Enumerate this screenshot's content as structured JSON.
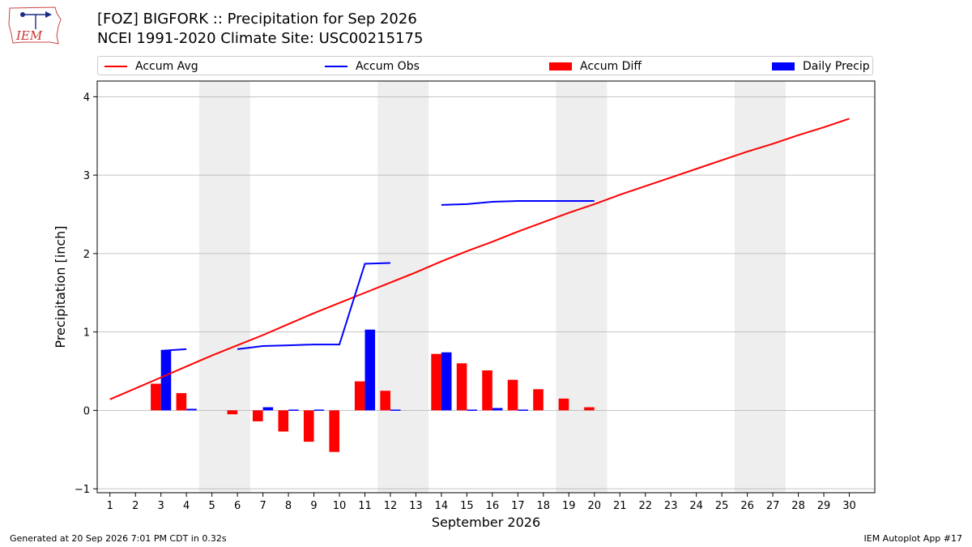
{
  "header": {
    "logo_text": "IEM",
    "title_line1": "[FOZ] BIGFORK :: Precipitation for Sep 2026",
    "title_line2": "NCEI 1991-2020 Climate Site: USC00215175"
  },
  "legend": {
    "placement": "top",
    "items": [
      {
        "label": "Accum Avg",
        "kind": "line",
        "color": "#ff0000"
      },
      {
        "label": "Accum Obs",
        "kind": "line",
        "color": "#0000ff"
      },
      {
        "label": "Accum Diff",
        "kind": "patch",
        "color": "#ff0000"
      },
      {
        "label": "Daily Precip",
        "kind": "patch",
        "color": "#0000ff"
      }
    ]
  },
  "footer": {
    "left": "Generated at 20 Sep 2026 7:01 PM CDT in 0.32s",
    "right": "IEM Autoplot App #17"
  },
  "chart_data": {
    "type": "bar",
    "title": "[FOZ] BIGFORK :: Precipitation for Sep 2026",
    "subtitle": "NCEI 1991-2020 Climate Site: USC00215175",
    "xlabel": "September 2026",
    "ylabel": "Precipitation [inch]",
    "xlim": [
      0.5,
      31
    ],
    "ylim": [
      -1.05,
      4.2
    ],
    "x_ticks": [
      1,
      2,
      3,
      4,
      5,
      6,
      7,
      8,
      9,
      10,
      11,
      12,
      13,
      14,
      15,
      16,
      17,
      18,
      19,
      20,
      21,
      22,
      23,
      24,
      25,
      26,
      27,
      28,
      29,
      30
    ],
    "y_ticks": [
      -1,
      0,
      1,
      2,
      3,
      4
    ],
    "grid": "horizontal",
    "weekend_shading": [
      [
        5,
        6
      ],
      [
        12,
        13
      ],
      [
        19,
        20
      ],
      [
        26,
        27
      ]
    ],
    "colors": {
      "avg": "#ff0000",
      "obs": "#0000ff",
      "diff": "#ff0000",
      "daily": "#0000ff",
      "shade": "#eeeeee",
      "grid": "#b0b0b0"
    },
    "series": [
      {
        "name": "Accum Avg",
        "type": "line",
        "x": [
          1,
          2,
          3,
          4,
          5,
          6,
          7,
          8,
          9,
          10,
          11,
          12,
          13,
          14,
          15,
          16,
          17,
          18,
          19,
          20,
          21,
          22,
          23,
          24,
          25,
          26,
          27,
          28,
          29,
          30
        ],
        "values": [
          0.14,
          0.28,
          0.42,
          0.56,
          0.7,
          0.83,
          0.96,
          1.1,
          1.24,
          1.37,
          1.5,
          1.63,
          1.76,
          1.9,
          2.03,
          2.15,
          2.28,
          2.4,
          2.52,
          2.63,
          2.75,
          2.86,
          2.97,
          3.08,
          3.19,
          3.3,
          3.4,
          3.51,
          3.61,
          3.72
        ]
      },
      {
        "name": "Accum Obs",
        "type": "line",
        "segments": [
          {
            "x": [
              3,
              4
            ],
            "values": [
              0.76,
              0.78
            ]
          },
          {
            "x": [
              6,
              7,
              8,
              9,
              10,
              11,
              12
            ],
            "values": [
              0.78,
              0.82,
              0.83,
              0.84,
              0.84,
              1.87,
              1.88
            ]
          },
          {
            "x": [
              14,
              15,
              16,
              17,
              18,
              19,
              20
            ],
            "values": [
              2.62,
              2.63,
              2.66,
              2.67,
              2.67,
              2.67,
              2.67
            ]
          }
        ]
      },
      {
        "name": "Accum Diff",
        "type": "bar",
        "x": [
          3,
          4,
          6,
          7,
          8,
          9,
          10,
          11,
          12,
          14,
          15,
          16,
          17,
          18,
          19,
          20
        ],
        "values": [
          0.34,
          0.22,
          -0.05,
          -0.14,
          -0.27,
          -0.4,
          -0.53,
          0.37,
          0.25,
          0.72,
          0.6,
          0.51,
          0.39,
          0.27,
          0.15,
          0.04
        ]
      },
      {
        "name": "Daily Precip",
        "type": "bar",
        "x": [
          3,
          4,
          7,
          8,
          9,
          11,
          12,
          14,
          15,
          16,
          17
        ],
        "values": [
          0.76,
          0.02,
          0.04,
          0.01,
          0.01,
          1.03,
          0.01,
          0.74,
          0.01,
          0.03,
          0.01
        ]
      }
    ]
  }
}
